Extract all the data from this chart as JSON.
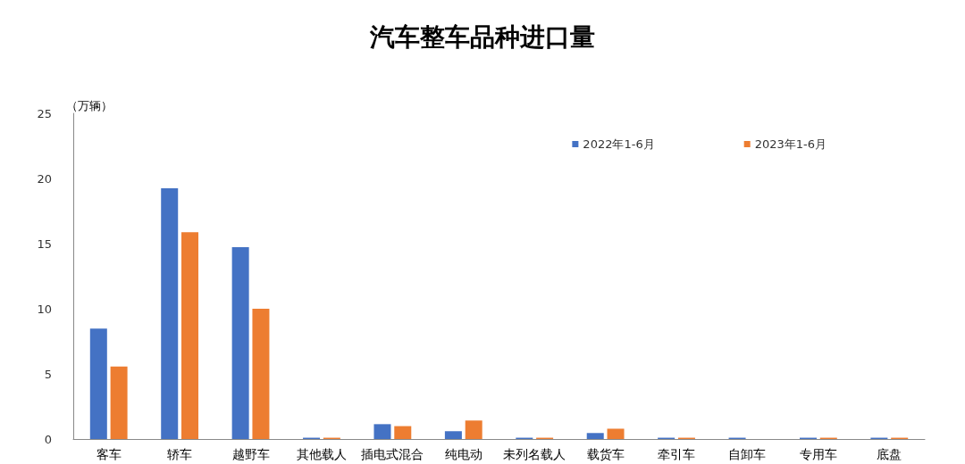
{
  "chart_data": {
    "type": "bar",
    "title": "汽车整车品种进口量",
    "ylabel": "（万辆）",
    "categories": [
      "客车",
      "轿车",
      "越野车",
      "其他载人",
      "插电式混合",
      "纯电动",
      "未列名载人",
      "载货车",
      "牵引车",
      "自卸车",
      "专用车",
      "底盘"
    ],
    "series": [
      {
        "name": "2022年1-6月",
        "color": "#4472c4",
        "values": [
          8.47,
          19.24,
          14.73,
          0.1,
          1.14,
          0.6,
          0.1,
          0.46,
          0.1,
          0.1,
          0.1,
          0.1
        ]
      },
      {
        "name": "2023年1-6月",
        "color": "#ed7d31",
        "values": [
          5.56,
          15.87,
          10.0,
          0.1,
          0.99,
          1.42,
          0.1,
          0.79,
          0.1,
          0,
          0.1,
          0.1
        ]
      }
    ],
    "ylim": [
      0,
      25
    ],
    "yticks": [
      0,
      5,
      10,
      15,
      20,
      25
    ],
    "grid": false,
    "legend": "top right"
  }
}
